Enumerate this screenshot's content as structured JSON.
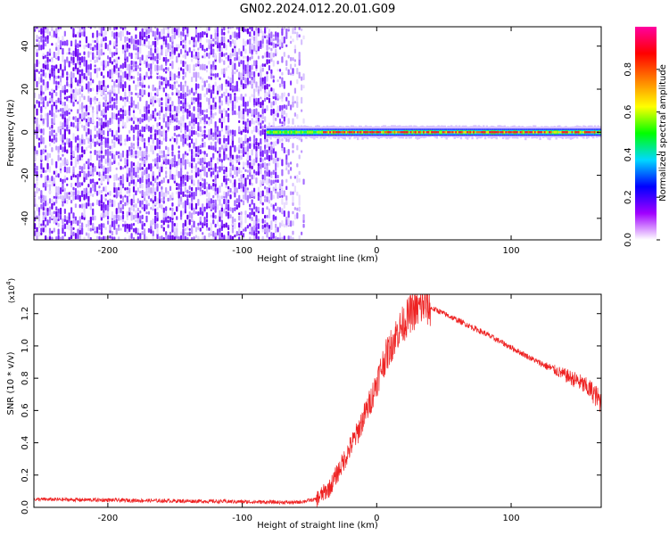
{
  "title": "GN02.2024.012.20.01.G09",
  "chart_data": [
    {
      "type": "heatmap",
      "xlabel": "Height of straight line (km)",
      "ylabel": "Frequency (Hz)",
      "xlim": [
        -255,
        167
      ],
      "ylim": [
        -50,
        49
      ],
      "xticks": [
        -200,
        -100,
        0,
        100
      ],
      "yticks": [
        -40,
        -20,
        0,
        20,
        40
      ],
      "xtick_labels": [
        "-200",
        "-100",
        "0",
        "100"
      ],
      "ytick_labels": [
        "-40",
        "-20",
        "0",
        "20",
        "40"
      ],
      "noise_region_x": [
        -255,
        -55
      ],
      "signal_band": {
        "x_start": -82,
        "x_end": 167,
        "freq": 0
      },
      "colorbar": {
        "label": "Normalized spectral amplitude",
        "range": [
          0,
          1
        ],
        "ticks": [
          "0.0",
          "0.2",
          "0.4",
          "0.6",
          "0.8"
        ],
        "tick_values": [
          0.0,
          0.2,
          0.4,
          0.6,
          0.8
        ],
        "colors": [
          "#ffffff",
          "#a000ff",
          "#0000ff",
          "#00d8ff",
          "#00ff00",
          "#ffff00",
          "#ff8000",
          "#ff0000",
          "#ff00a0"
        ]
      }
    },
    {
      "type": "line",
      "xlabel": "Height of straight line (km)",
      "ylabel": "SNR (10 * v/v)",
      "multiplier": "(x10",
      "multiplier_exp": "4",
      "multiplier_close": ")",
      "xlim": [
        -255,
        167
      ],
      "ylim": [
        0,
        1.32
      ],
      "xticks": [
        -200,
        -100,
        0,
        100
      ],
      "yticks": [
        0.0,
        0.2,
        0.4,
        0.6,
        0.8,
        1.0,
        1.2
      ],
      "xtick_labels": [
        "-200",
        "-100",
        "0",
        "100"
      ],
      "ytick_labels": [
        "0.0",
        "0.2",
        "0.4",
        "0.6",
        "0.8",
        "1.0",
        "1.2"
      ],
      "color": "#ee2222",
      "series": [
        {
          "x": [
            -255,
            -200,
            -150,
            -100,
            -60,
            -45,
            -35,
            -25,
            -15,
            -5,
            5,
            15,
            25,
            35,
            45,
            60,
            80,
            100,
            120,
            140,
            150,
            160,
            167
          ],
          "y": [
            0.05,
            0.045,
            0.04,
            0.035,
            0.03,
            0.05,
            0.12,
            0.28,
            0.45,
            0.65,
            0.9,
            1.08,
            1.2,
            1.25,
            1.22,
            1.16,
            1.08,
            0.99,
            0.9,
            0.82,
            0.78,
            0.72,
            0.65
          ]
        }
      ]
    }
  ]
}
